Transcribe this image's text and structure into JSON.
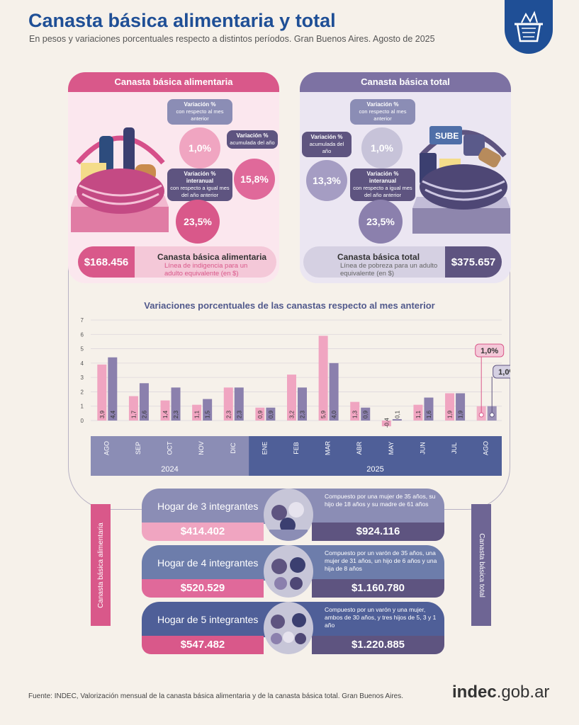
{
  "header": {
    "title": "Canasta básica alimentaria y total",
    "subtitle": "En pesos y variaciones porcentuales respecto a distintos períodos. Gran Buenos Aires. Agosto de 2025"
  },
  "cba": {
    "heading": "Canasta básica alimentaria",
    "mensual": {
      "tag_title": "Variación %",
      "tag_text": "con respecto al mes anterior",
      "value": "1,0%"
    },
    "acumulada": {
      "tag_title": "Variación %",
      "tag_text": "acumulada del año",
      "value": "15,8%"
    },
    "interanual": {
      "tag_title": "Variación % interanual",
      "tag_text": "con respecto a igual mes del año anterior",
      "value": "23,5%"
    },
    "amount": "$168.456",
    "band_title": "Canasta básica alimentaria",
    "band_sub": "Línea de indigencia para un adulto equivalente (en $)"
  },
  "cbt": {
    "heading": "Canasta básica total",
    "mensual": {
      "tag_title": "Variación %",
      "tag_text": "con respecto al mes anterior",
      "value": "1,0%"
    },
    "acumulada": {
      "tag_title": "Variación %",
      "tag_text": "acumulada del año",
      "value": "13,3%"
    },
    "interanual": {
      "tag_title": "Variación % interanual",
      "tag_text": "con respecto a igual mes del año anterior",
      "value": "23,5%"
    },
    "amount": "$375.657",
    "band_title": "Canasta básica total",
    "band_sub": "Línea de pobreza para un adulto equivalente (en $)",
    "basket_label": "SUBE"
  },
  "chart_data": {
    "type": "bar",
    "title": "Variaciones porcentuales de las canastas respecto al mes anterior",
    "categories": [
      "AGO",
      "SEP",
      "OCT",
      "NOV",
      "DIC",
      "ENE",
      "FEB",
      "MAR",
      "ABR",
      "MAY",
      "JUN",
      "JUL",
      "AGO"
    ],
    "years": [
      {
        "label": "2024",
        "months": 5
      },
      {
        "label": "2025",
        "months": 8
      }
    ],
    "series": [
      {
        "values": [
          3.9,
          1.7,
          1.4,
          1.1,
          2.3,
          0.9,
          3.2,
          5.9,
          1.3,
          -0.4,
          1.1,
          1.9,
          1.0
        ],
        "labels": [
          "3,9",
          "1,7",
          "1,4",
          "1,1",
          "2,3",
          "0,9",
          "3,2",
          "5,9",
          "1,3",
          "-0,4",
          "1,1",
          "1,9",
          "1,0%"
        ],
        "color": "#f0a5c1"
      },
      {
        "values": [
          4.4,
          2.6,
          2.3,
          1.5,
          2.3,
          0.9,
          2.3,
          4.0,
          0.9,
          0.1,
          1.6,
          1.9,
          1.0
        ],
        "labels": [
          "4,4",
          "2,6",
          "2,3",
          "1,5",
          "2,3",
          "0,9",
          "2,3",
          "4,0",
          "0,9",
          "0,1",
          "1,6",
          "1,9",
          "1,0%"
        ],
        "color": "#8b80ad"
      }
    ],
    "yticks": [
      0,
      1,
      2,
      3,
      4,
      5,
      6,
      7
    ],
    "ylim": [
      -0.6,
      7
    ],
    "grid": true
  },
  "hogares": [
    {
      "title": "Hogar de 3 integrantes",
      "cba": "$414.402",
      "cbt": "$924.116",
      "desc": "Compuesto por una mujer de 35 años, su hijo de 18 años y su madre de 61 años",
      "color": "#8b8db5"
    },
    {
      "title": "Hogar de 4 integrantes",
      "cba": "$520.529",
      "cbt": "$1.160.780",
      "desc": "Compuesto por un varón de 35 años, una mujer de 31 años, un hijo de 6 años y una hija de 8 años",
      "color": "#6d7dab"
    },
    {
      "title": "Hogar de 5 integrantes",
      "cba": "$547.482",
      "cbt": "$1.220.885",
      "desc": "Compuesto por un varón y una mujer, ambos de 30 años, y tres hijos de 5, 3 y 1 año",
      "color": "#4f5f98"
    }
  ],
  "side": {
    "left": "Canasta básica alimentaria",
    "right": "Canasta básica total"
  },
  "footer": {
    "source": "Fuente: INDEC, Valorización mensual de la canasta básica alimentaria y de la canasta básica total. Gran Buenos Aires.",
    "brand_a": "indec",
    "brand_b": ".gob.ar"
  }
}
